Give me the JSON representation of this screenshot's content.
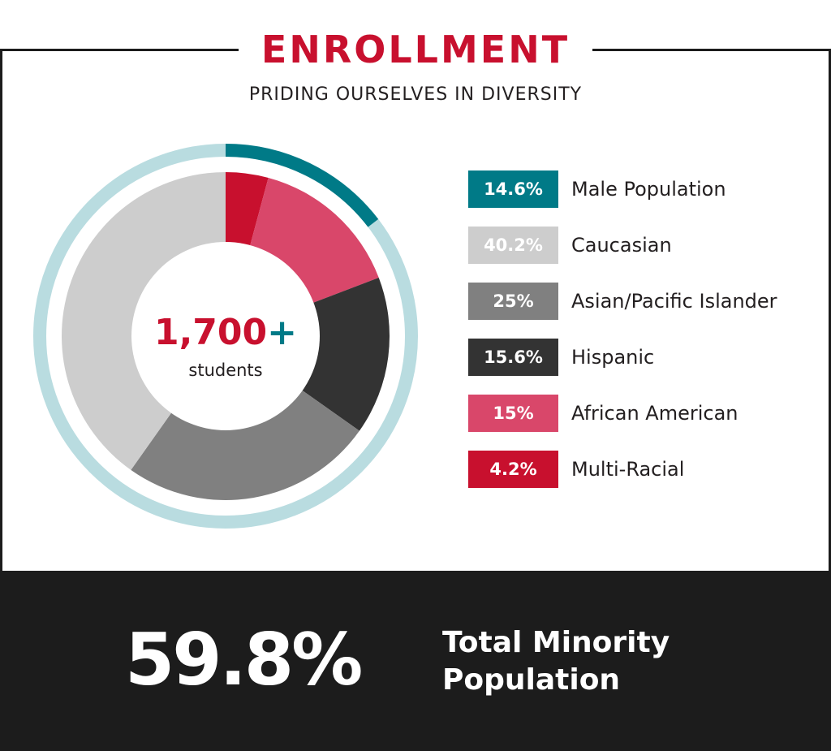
{
  "header": {
    "title": "ENROLLMENT",
    "subtitle": "PRIDING OURSELVES IN DIVERSITY"
  },
  "center": {
    "count": "1,700",
    "plus": "+",
    "unit": "students"
  },
  "chart_data": [
    {
      "type": "pie",
      "variant": "donut",
      "series": [
        {
          "name": "Multi-Racial",
          "value": 4.2,
          "color": "#c8102e"
        },
        {
          "name": "African American",
          "value": 15,
          "color": "#d9476a"
        },
        {
          "name": "Hispanic",
          "value": 15.6,
          "color": "#333333"
        },
        {
          "name": "Asian/Pacific Islander",
          "value": 25,
          "color": "#808080"
        },
        {
          "name": "Caucasian",
          "value": 40.2,
          "color": "#cdcdcd"
        }
      ]
    },
    {
      "type": "pie",
      "variant": "outer-ring",
      "series": [
        {
          "name": "Male Population",
          "value": 14.6,
          "color": "#007a87"
        }
      ],
      "track_color": "#b9dce0"
    }
  ],
  "legend": [
    {
      "value_label": "14.6%",
      "label": "Male Population",
      "color": "#007a87"
    },
    {
      "value_label": "40.2%",
      "label": "Caucasian",
      "color": "#cdcdcd"
    },
    {
      "value_label": "25%",
      "label": "Asian/Pacific Islander",
      "color": "#808080"
    },
    {
      "value_label": "15.6%",
      "label": "Hispanic",
      "color": "#333333"
    },
    {
      "value_label": "15%",
      "label": "African American",
      "color": "#d9476a"
    },
    {
      "value_label": "4.2%",
      "label": "Multi-Racial",
      "color": "#c8102e"
    }
  ],
  "footer": {
    "value": "59.8%",
    "label": "Total Minority Population"
  },
  "colors": {
    "accent": "#c8102e",
    "teal": "#007a87",
    "dark": "#1c1c1c"
  }
}
